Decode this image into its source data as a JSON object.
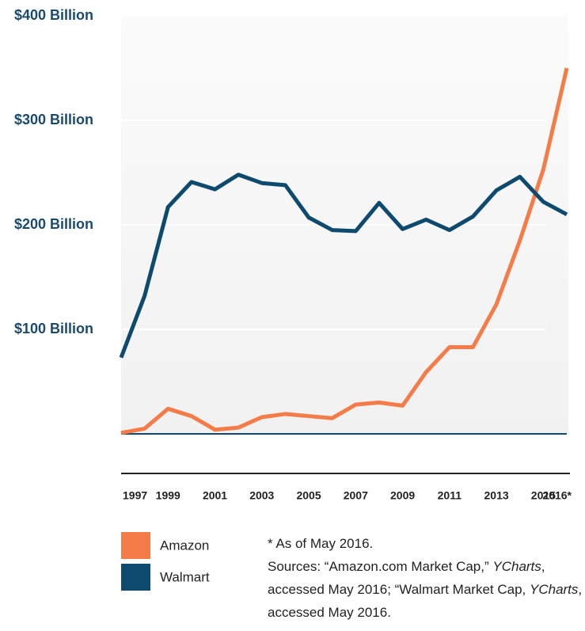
{
  "chart_data": {
    "type": "line",
    "categories": [
      "1997",
      null,
      "1999",
      null,
      "2001",
      null,
      "2003",
      null,
      "2005",
      null,
      "2007",
      null,
      "2009",
      null,
      "2011",
      null,
      "2013",
      null,
      "2015",
      "2016*"
    ],
    "series": [
      {
        "name": "Amazon",
        "color": "#f47c48",
        "values": [
          1,
          5,
          24,
          17,
          4,
          6,
          16,
          19,
          17,
          15,
          28,
          30,
          27,
          59,
          83,
          83,
          124,
          185,
          253,
          350
        ]
      },
      {
        "name": "Walmart",
        "color": "#0e4a6e",
        "values": [
          73,
          132,
          217,
          241,
          234,
          248,
          240,
          238,
          207,
          195,
          194,
          221,
          196,
          205,
          195,
          208,
          233,
          246,
          222,
          210
        ]
      }
    ],
    "ylim": [
      0,
      400
    ],
    "yticks": [
      {
        "value": 100,
        "label": "$100 Billion"
      },
      {
        "value": 200,
        "label": "$200 Billion"
      },
      {
        "value": 300,
        "label": "$300 Billion"
      },
      {
        "value": 400,
        "label": "$400 Billion"
      }
    ],
    "grid": true,
    "footnote": "* As of May 2016.",
    "sources": [
      "Sources: “Amazon.com Market Cap,” ",
      "YCharts",
      ", accessed May 2016; “Walmart Market Cap, ",
      "YCharts",
      ", accessed May 2016."
    ]
  }
}
